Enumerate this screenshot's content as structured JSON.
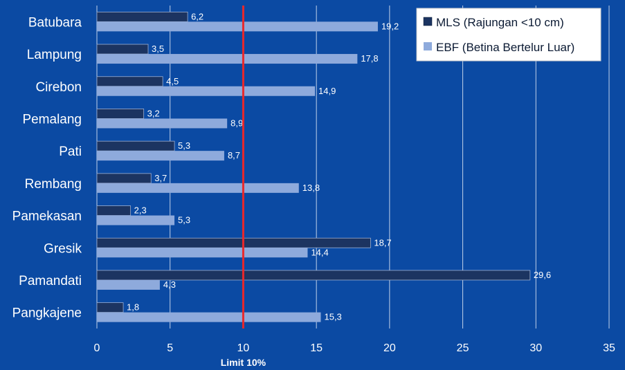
{
  "chart_data": {
    "type": "bar",
    "orientation": "horizontal",
    "categories": [
      "Batubara",
      "Lampung",
      "Cirebon",
      "Pemalang",
      "Pati",
      "Rembang",
      "Pamekasan",
      "Gresik",
      "Pamandati",
      "Pangkajene"
    ],
    "series": [
      {
        "name": "MLS (Rajungan <10 cm)",
        "color": "#1c3461",
        "values": [
          6.2,
          3.5,
          4.5,
          3.2,
          5.3,
          3.7,
          2.3,
          18.7,
          29.6,
          1.8
        ],
        "labels": [
          "6,2",
          "3,5",
          "4,5",
          "3,2",
          "5,3",
          "3,7",
          "2,3",
          "18,7",
          "29,6",
          "1,8"
        ]
      },
      {
        "name": "EBF (Betina Bertelur Luar)",
        "color": "#8eaadc",
        "values": [
          19.2,
          17.8,
          14.9,
          8.9,
          8.7,
          13.8,
          5.3,
          14.4,
          4.3,
          15.3
        ],
        "labels": [
          "19,2",
          "17,8",
          "14,9",
          "8,9",
          "8,7",
          "13,8",
          "5,3",
          "14,4",
          "4,3",
          "15,3"
        ]
      }
    ],
    "xlim": [
      0,
      35
    ],
    "xticks": [
      0,
      5,
      10,
      15,
      20,
      25,
      30,
      35
    ],
    "reference_line": {
      "value": 10,
      "label": "Limit 10%",
      "color": "#e8282b"
    },
    "grid": true,
    "legend_position": "top-right",
    "colors": {
      "background": "#0b4aa3",
      "gridline": "#ffffff"
    }
  }
}
